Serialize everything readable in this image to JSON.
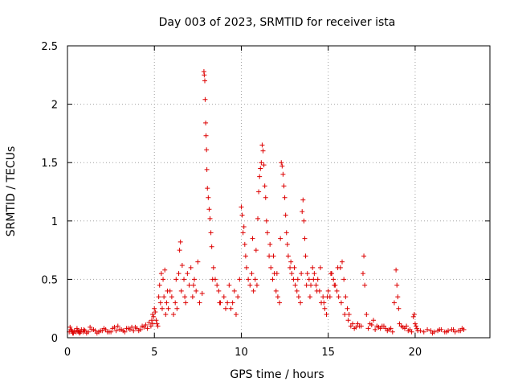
{
  "chart_data": {
    "type": "scatter",
    "title": "Day 003 of 2023, SRMTID for receiver ista",
    "xlabel": "GPS time / hours",
    "ylabel": "SRMTID / TECUs",
    "xlim": [
      0,
      24.3
    ],
    "ylim": [
      0,
      2.5
    ],
    "xticks": [
      0,
      5,
      10,
      15,
      20
    ],
    "xtick_labels": [
      "0",
      "5",
      "10",
      "15",
      "20"
    ],
    "yticks": [
      0,
      0.5,
      1,
      1.5,
      2,
      2.5
    ],
    "ytick_labels": [
      "0",
      "0.5",
      "1",
      "1.5",
      "2",
      "2.5"
    ],
    "grid": true,
    "marker": "+",
    "colors": {
      "series": "#dd0000",
      "grid": "#a0a0a0",
      "axis": "#000000"
    },
    "series": [
      {
        "name": "SRMTID",
        "x": [
          0.1,
          0.2,
          0.3,
          0.4,
          0.5,
          0.6,
          0.7,
          0.8,
          0.9,
          1.0,
          1.2,
          1.4,
          1.6,
          1.8,
          2.0,
          2.2,
          2.4,
          2.6,
          2.8,
          3.0,
          3.2,
          3.4,
          3.6,
          3.8,
          4.0,
          4.2,
          4.4,
          4.6,
          4.8,
          0.15,
          0.35,
          0.55,
          0.75,
          0.95,
          1.3,
          1.7,
          2.1,
          2.5,
          2.9,
          3.3,
          3.7,
          4.1,
          4.5,
          4.9,
          4.85,
          4.9,
          4.95,
          5.0,
          5.05,
          5.1,
          5.15,
          5.2,
          5.3,
          5.35,
          5.4,
          5.45,
          5.5,
          5.55,
          5.6,
          5.65,
          5.7,
          5.8,
          5.9,
          6.0,
          6.1,
          6.2,
          6.3,
          6.4,
          6.45,
          6.5,
          6.55,
          6.6,
          6.7,
          6.8,
          6.9,
          7.0,
          7.1,
          7.2,
          7.3,
          7.4,
          7.5,
          7.6,
          7.85,
          7.87,
          7.9,
          7.92,
          7.95,
          7.97,
          8.0,
          8.02,
          8.05,
          8.1,
          8.15,
          8.2,
          8.25,
          8.3,
          8.4,
          8.5,
          8.6,
          8.7,
          8.8,
          9.0,
          9.2,
          9.4,
          9.6,
          9.8,
          10.0,
          10.05,
          10.1,
          10.15,
          10.2,
          10.3,
          10.4,
          10.5,
          10.6,
          10.7,
          10.8,
          10.9,
          10.95,
          11.0,
          11.05,
          11.1,
          11.15,
          11.2,
          11.25,
          11.3,
          11.35,
          11.4,
          11.5,
          11.6,
          11.7,
          11.8,
          11.9,
          12.0,
          12.1,
          12.2,
          12.3,
          12.35,
          12.4,
          12.45,
          12.5,
          12.55,
          12.6,
          12.7,
          12.8,
          12.9,
          13.0,
          13.1,
          13.2,
          13.3,
          13.4,
          13.5,
          13.55,
          13.6,
          13.65,
          13.7,
          13.8,
          13.9,
          14.0,
          14.1,
          14.2,
          14.3,
          14.4,
          14.5,
          14.6,
          14.7,
          14.8,
          14.9,
          15.0,
          15.1,
          15.2,
          15.3,
          15.4,
          15.5,
          15.6,
          15.7,
          15.8,
          15.9,
          16.0,
          16.1,
          16.2,
          16.3,
          16.5,
          16.7,
          16.9,
          17.0,
          17.05,
          17.1,
          17.2,
          17.4,
          17.6,
          17.8,
          18.0,
          18.2,
          18.4,
          18.6,
          18.9,
          18.95,
          19.0,
          19.05,
          19.1,
          19.2,
          19.4,
          19.6,
          19.8,
          19.9,
          19.95,
          20.0,
          20.1,
          20.3,
          20.5,
          20.7,
          20.9,
          21.1,
          21.3,
          21.5,
          21.7,
          21.9,
          22.1,
          22.3,
          22.5,
          22.7,
          22.8,
          20.05,
          20.15,
          21.0,
          21.4,
          21.8,
          22.2,
          22.6,
          0.25,
          0.65,
          1.1,
          1.5,
          1.9,
          2.3,
          2.7,
          3.1,
          3.5,
          3.9,
          4.3,
          4.7,
          5.25,
          5.75,
          6.25,
          6.75,
          7.25,
          7.75,
          8.35,
          8.75,
          9.1,
          9.3,
          9.5,
          9.7,
          9.9,
          10.25,
          10.65,
          10.85,
          11.45,
          11.65,
          11.85,
          12.05,
          12.25,
          12.65,
          12.85,
          13.05,
          13.25,
          13.45,
          13.75,
          13.95,
          14.15,
          14.35,
          14.55,
          14.75,
          14.95,
          15.15,
          15.35,
          15.55,
          15.75,
          15.95,
          16.15,
          16.4,
          16.6,
          16.8,
          17.3,
          17.5,
          17.7,
          17.9,
          18.1,
          18.3,
          18.5,
          18.7,
          18.8,
          19.3,
          19.5,
          19.7
        ],
        "y": [
          0.05,
          0.07,
          0.04,
          0.06,
          0.05,
          0.06,
          0.04,
          0.07,
          0.05,
          0.06,
          0.05,
          0.07,
          0.06,
          0.05,
          0.06,
          0.07,
          0.05,
          0.08,
          0.06,
          0.07,
          0.06,
          0.08,
          0.07,
          0.06,
          0.08,
          0.07,
          0.09,
          0.08,
          0.1,
          0.09,
          0.04,
          0.08,
          0.05,
          0.07,
          0.09,
          0.04,
          0.08,
          0.05,
          0.1,
          0.05,
          0.09,
          0.06,
          0.11,
          0.12,
          0.15,
          0.2,
          0.18,
          0.25,
          0.22,
          0.15,
          0.12,
          0.1,
          0.45,
          0.3,
          0.55,
          0.25,
          0.5,
          0.35,
          0.58,
          0.2,
          0.3,
          0.25,
          0.4,
          0.35,
          0.2,
          0.3,
          0.25,
          0.55,
          0.75,
          0.82,
          0.4,
          0.62,
          0.5,
          0.3,
          0.55,
          0.45,
          0.6,
          0.35,
          0.5,
          0.4,
          0.65,
          0.3,
          2.28,
          2.25,
          2.2,
          2.04,
          1.84,
          1.73,
          1.61,
          1.44,
          1.28,
          1.2,
          1.1,
          1.02,
          0.9,
          0.78,
          0.6,
          0.5,
          0.45,
          0.4,
          0.3,
          0.35,
          0.3,
          0.25,
          0.4,
          0.35,
          1.12,
          1.05,
          0.9,
          0.95,
          0.8,
          0.6,
          0.5,
          0.45,
          0.55,
          0.4,
          0.5,
          0.45,
          1.02,
          1.25,
          1.38,
          1.45,
          1.5,
          1.65,
          1.6,
          1.48,
          1.3,
          1.2,
          0.9,
          0.7,
          0.6,
          0.5,
          0.55,
          0.4,
          0.35,
          0.3,
          1.5,
          1.47,
          1.4,
          1.3,
          1.2,
          1.05,
          0.9,
          0.7,
          0.6,
          0.55,
          0.5,
          0.45,
          0.4,
          0.35,
          0.3,
          1.08,
          1.18,
          1.0,
          0.85,
          0.7,
          0.55,
          0.5,
          0.45,
          0.6,
          0.55,
          0.45,
          0.5,
          0.4,
          0.3,
          0.35,
          0.25,
          0.2,
          0.4,
          0.35,
          0.55,
          0.5,
          0.45,
          0.4,
          0.35,
          0.6,
          0.65,
          0.5,
          0.35,
          0.25,
          0.2,
          0.1,
          0.08,
          0.12,
          0.1,
          0.55,
          0.7,
          0.45,
          0.2,
          0.12,
          0.15,
          0.1,
          0.08,
          0.1,
          0.06,
          0.08,
          0.58,
          0.45,
          0.35,
          0.25,
          0.12,
          0.1,
          0.08,
          0.06,
          0.05,
          0.18,
          0.2,
          0.12,
          0.08,
          0.06,
          0.05,
          0.07,
          0.06,
          0.05,
          0.06,
          0.07,
          0.05,
          0.06,
          0.07,
          0.05,
          0.06,
          0.08,
          0.07,
          0.1,
          0.06,
          0.04,
          0.07,
          0.05,
          0.07,
          0.06,
          0.06,
          0.05,
          0.04,
          0.07,
          0.06,
          0.05,
          0.09,
          0.07,
          0.08,
          0.09,
          0.1,
          0.13,
          0.35,
          0.4,
          0.5,
          0.35,
          0.45,
          0.38,
          0.5,
          0.3,
          0.25,
          0.45,
          0.3,
          0.2,
          0.5,
          0.7,
          0.85,
          0.75,
          1.0,
          0.8,
          0.7,
          0.55,
          0.85,
          0.8,
          0.65,
          0.6,
          0.5,
          0.55,
          0.45,
          0.35,
          0.5,
          0.4,
          0.6,
          0.3,
          0.35,
          0.55,
          0.45,
          0.6,
          0.3,
          0.2,
          0.15,
          0.12,
          0.09,
          0.1,
          0.08,
          0.11,
          0.07,
          0.09,
          0.1,
          0.08,
          0.07,
          0.05,
          0.3,
          0.09,
          0.1,
          0.07
        ]
      }
    ]
  }
}
